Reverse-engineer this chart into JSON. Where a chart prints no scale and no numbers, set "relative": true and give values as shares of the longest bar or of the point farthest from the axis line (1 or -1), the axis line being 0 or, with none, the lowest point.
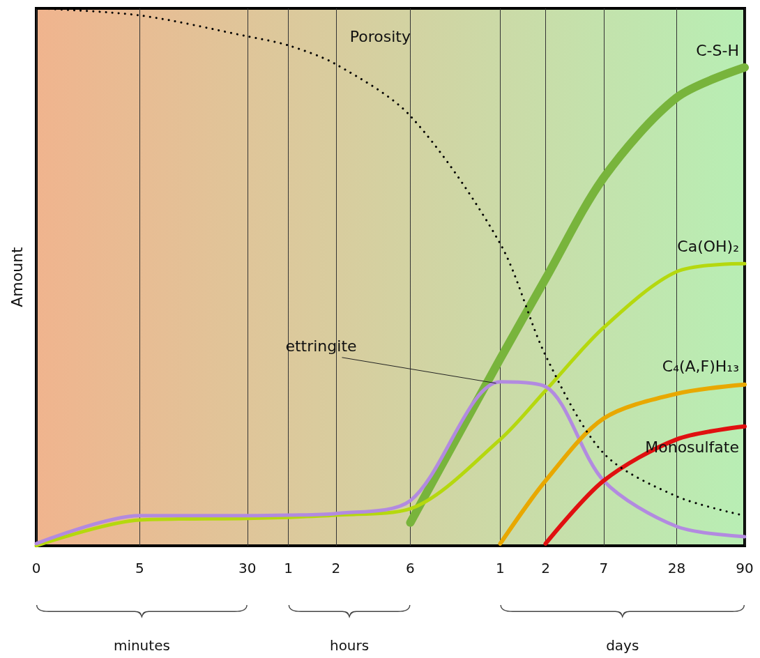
{
  "chart_data": {
    "type": "line",
    "ylabel": "Amount",
    "relative": true,
    "grid": "x",
    "legend": false,
    "marker": "none",
    "categories": [
      "0",
      "5",
      "30",
      "1",
      "2",
      "6",
      "1",
      "2",
      "7",
      "28",
      "90"
    ],
    "annotations": [
      "minutes",
      "hours",
      "days"
    ],
    "series": [
      {
        "name": "Porosity",
        "color": "#000000",
        "line_style": "dotted",
        "values": [
          1.0,
          0.987,
          0.948,
          0.931,
          0.896,
          0.8,
          0.562,
          0.354,
          0.172,
          0.092,
          0.056
        ]
      },
      {
        "name": "C-S-H",
        "color": "#78b43c",
        "line_style": "solid",
        "values": [
          null,
          null,
          null,
          null,
          null,
          0.043,
          0.348,
          0.497,
          0.685,
          0.834,
          0.89
        ]
      },
      {
        "name": "Ca(OH)₂",
        "color": "#b5d80e",
        "line_style": "solid",
        "values": [
          0,
          0.048,
          0.051,
          0.053,
          0.057,
          0.069,
          0.198,
          0.289,
          0.406,
          0.51,
          0.525
        ]
      },
      {
        "name": "ettringite",
        "color": "#b28ae0",
        "line_style": "solid",
        "values": [
          0.004,
          0.056,
          0.056,
          0.057,
          0.06,
          0.084,
          0.305,
          0.296,
          0.121,
          0.036,
          0.017
        ]
      },
      {
        "name": "C₄(A,F)H₁₃",
        "color": "#e8a800",
        "line_style": "solid",
        "values": [
          null,
          null,
          null,
          null,
          null,
          null,
          0.004,
          0.121,
          0.237,
          0.283,
          0.3
        ]
      },
      {
        "name": "Monosulfate",
        "color": "#e01010",
        "line_style": "solid",
        "values": [
          null,
          null,
          null,
          null,
          null,
          null,
          null,
          0.004,
          0.121,
          0.198,
          0.222
        ]
      }
    ]
  }
}
